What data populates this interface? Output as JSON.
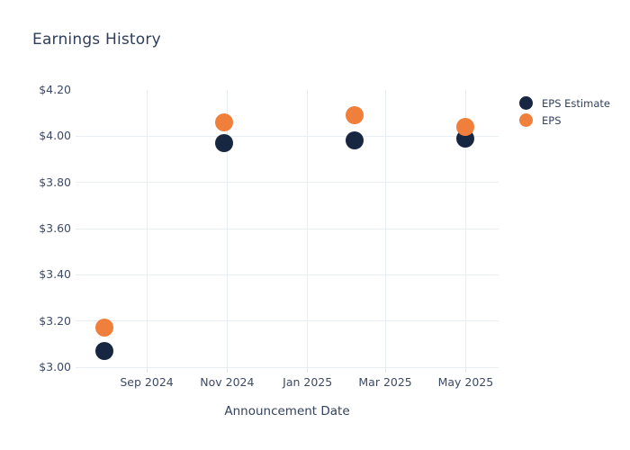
{
  "chart": {
    "title": "Earnings History",
    "x_axis_title": "Announcement Date",
    "background_color": "#ffffff",
    "grid_color": "#E9EDF4",
    "text_color": "#3C4A66",
    "title_color": "#2F3E5D"
  },
  "legend": {
    "items": [
      {
        "label": "EPS Estimate",
        "color": "#182741"
      },
      {
        "label": "EPS",
        "color": "#F07F3B"
      }
    ]
  },
  "chart_data": {
    "type": "scatter",
    "title": "Earnings History",
    "xlabel": "Announcement Date",
    "ylabel": "",
    "grid": "on",
    "legend_position": "right-top",
    "ylim": [
      3.0,
      4.2
    ],
    "x_range": [
      "2024-07-09",
      "2025-05-26"
    ],
    "y_ticks": [
      {
        "value": 3.0,
        "label": "$3.00",
        "grid": true
      },
      {
        "value": 3.2,
        "label": "$3.20",
        "grid": true
      },
      {
        "value": 3.4,
        "label": "$3.40",
        "grid": true
      },
      {
        "value": 3.6,
        "label": "$3.60",
        "grid": true
      },
      {
        "value": 3.8,
        "label": "$3.80",
        "grid": true
      },
      {
        "value": 4.0,
        "label": "$4.00",
        "grid": true
      },
      {
        "value": 4.2,
        "label": "$4.20",
        "grid": false
      }
    ],
    "x_ticks": [
      {
        "date": "2024-09-01",
        "label": "Sep 2024"
      },
      {
        "date": "2024-11-01",
        "label": "Nov 2024"
      },
      {
        "date": "2025-01-01",
        "label": "Jan 2025"
      },
      {
        "date": "2025-03-01",
        "label": "Mar 2025"
      },
      {
        "date": "2025-05-01",
        "label": "May 2025"
      }
    ],
    "series": [
      {
        "name": "EPS Estimate",
        "color": "#182741",
        "points": [
          {
            "date": "2024-07-31",
            "value": 3.07
          },
          {
            "date": "2024-10-30",
            "value": 3.97
          },
          {
            "date": "2025-02-06",
            "value": 3.98
          },
          {
            "date": "2025-05-01",
            "value": 3.99
          }
        ]
      },
      {
        "name": "EPS",
        "color": "#F07F3B",
        "points": [
          {
            "date": "2024-07-31",
            "value": 3.17
          },
          {
            "date": "2024-10-30",
            "value": 4.06
          },
          {
            "date": "2025-02-06",
            "value": 4.09
          },
          {
            "date": "2025-05-01",
            "value": 4.04
          }
        ]
      }
    ]
  }
}
